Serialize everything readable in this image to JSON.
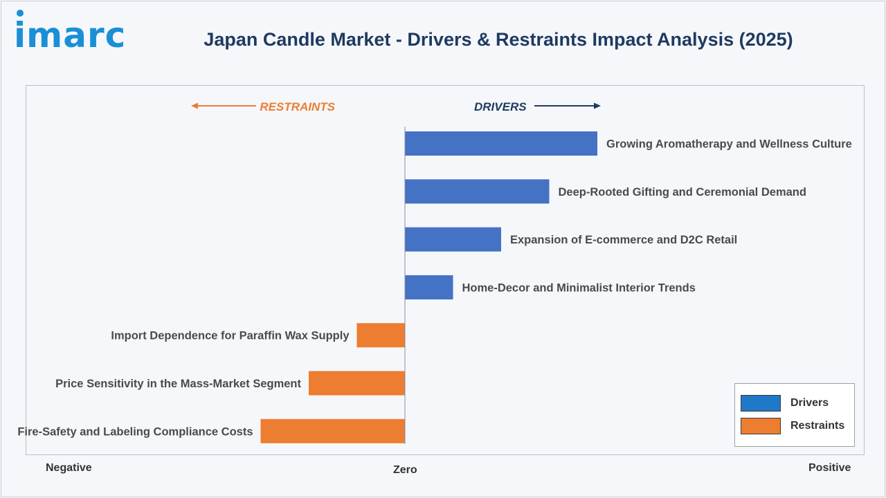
{
  "header": {
    "logo_text": "imarc",
    "title": "Japan Candle Market - Drivers & Restraints Impact Analysis (2025)"
  },
  "direction_labels": {
    "restraints": "RESTRAINTS",
    "drivers": "DRIVERS"
  },
  "axis": {
    "negative": "Negative",
    "zero": "Zero",
    "positive": "Positive"
  },
  "legend": {
    "drivers": "Drivers",
    "restraints": "Restraints"
  },
  "colors": {
    "drivers": "#4472c4",
    "restraints": "#ed7d31",
    "drivers_arrow": "#1f3a5f",
    "restraints_arrow": "#ed7d31",
    "legend_drivers": "#1f78c8"
  },
  "chart_data": {
    "type": "bar",
    "orientation": "horizontal",
    "categories": [
      "Growing Aromatherapy and Wellness Culture",
      "Deep-Rooted Gifting and Ceremonial Demand",
      "Expansion of E-commerce and D2C Retail",
      "Home-Decor and Minimalist Interior Trends",
      "Import Dependence for Paraffin Wax Supply",
      "Price Sensitivity in the Mass-Market Segment",
      "Fire-Safety and Labeling Compliance Costs"
    ],
    "series": [
      {
        "name": "Drivers",
        "values": [
          4,
          3,
          2,
          1,
          0,
          0,
          0
        ]
      },
      {
        "name": "Restraints",
        "values": [
          0,
          0,
          0,
          0,
          -1,
          -2,
          -3
        ]
      }
    ],
    "xlim": [
      -8,
      9.5
    ],
    "legend_position": "bottom-right",
    "grid": false
  }
}
